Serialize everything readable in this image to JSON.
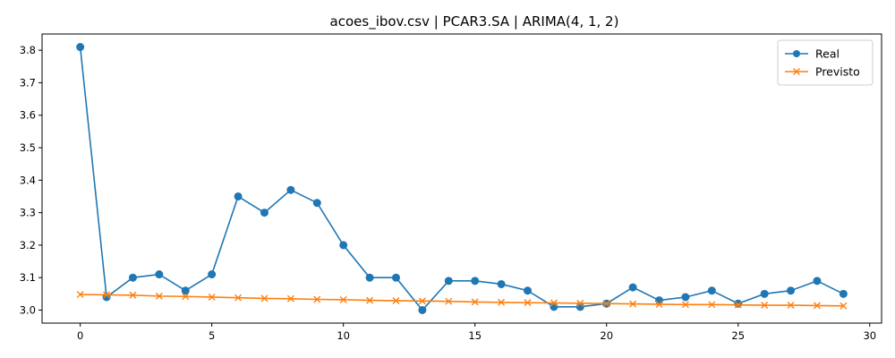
{
  "chart_data": {
    "type": "line",
    "title": "acoes_ibov.csv | PCAR3.SA | ARIMA(4, 1, 2)",
    "xlabel": "",
    "ylabel": "",
    "xlim": [
      -1.45,
      30.45
    ],
    "ylim": [
      2.96,
      3.85
    ],
    "xticks": [
      0,
      5,
      10,
      15,
      20,
      25,
      30
    ],
    "xtick_labels": [
      "0",
      "5",
      "10",
      "15",
      "20",
      "25",
      "30"
    ],
    "yticks": [
      3.0,
      3.1,
      3.2,
      3.3,
      3.4,
      3.5,
      3.6,
      3.7,
      3.8
    ],
    "ytick_labels": [
      "3.0",
      "3.1",
      "3.2",
      "3.3",
      "3.4",
      "3.5",
      "3.6",
      "3.7",
      "3.8"
    ],
    "grid": false,
    "legend_position": "top-right",
    "x": [
      0,
      1,
      2,
      3,
      4,
      5,
      6,
      7,
      8,
      9,
      10,
      11,
      12,
      13,
      14,
      15,
      16,
      17,
      18,
      19,
      20,
      21,
      22,
      23,
      24,
      25,
      26,
      27,
      28,
      29
    ],
    "series": [
      {
        "name": "Real",
        "color": "#1f77b4",
        "marker": "circle",
        "values": [
          3.81,
          3.04,
          3.1,
          3.11,
          3.06,
          3.11,
          3.35,
          3.3,
          3.37,
          3.33,
          3.2,
          3.1,
          3.1,
          3.0,
          3.09,
          3.09,
          3.08,
          3.06,
          3.01,
          3.01,
          3.02,
          3.07,
          3.03,
          3.04,
          3.06,
          3.02,
          3.05,
          3.06,
          3.09,
          3.05
        ]
      },
      {
        "name": "Previsto",
        "color": "#ff7f0e",
        "marker": "x",
        "values": [
          3.048,
          3.047,
          3.046,
          3.043,
          3.042,
          3.04,
          3.038,
          3.036,
          3.035,
          3.033,
          3.032,
          3.03,
          3.029,
          3.028,
          3.027,
          3.025,
          3.024,
          3.023,
          3.022,
          3.021,
          3.02,
          3.019,
          3.018,
          3.017,
          3.017,
          3.016,
          3.015,
          3.015,
          3.014,
          3.013
        ]
      }
    ]
  }
}
